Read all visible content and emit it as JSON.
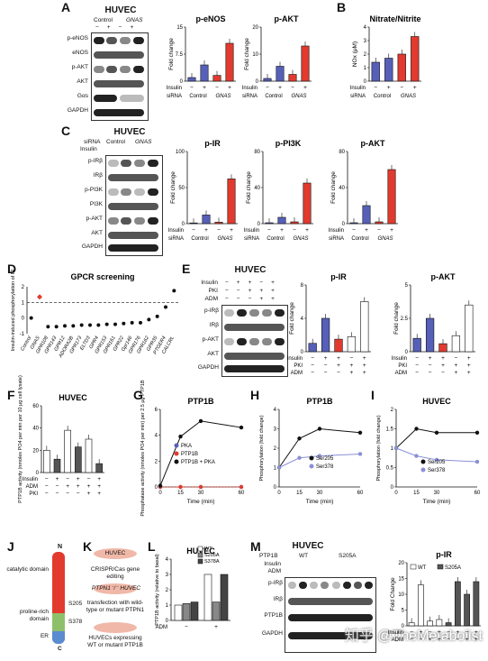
{
  "panels": {
    "A": {
      "letter": "A",
      "cell": "HUVEC",
      "conds": [
        "Control",
        "GNAS"
      ],
      "rows": [
        "p-eNOS",
        "eNOS",
        "p-AKT",
        "AKT",
        "Gαs",
        "GAPDH"
      ],
      "bar1_title": "p-eNOS",
      "bar2_title": "p-AKT",
      "ylabel": "Fold change",
      "insulin": "Insulin",
      "sirna": "siRNA",
      "minus": "−",
      "plus": "+",
      "ctrl": "Control",
      "gnas": "GNAS"
    },
    "B": {
      "letter": "B",
      "title": "Nitrate/Nitrite",
      "ylabel": "NOx (μM)"
    },
    "C": {
      "letter": "C",
      "cell": "HUVEC",
      "rows": [
        "p-IRβ",
        "IRβ",
        "p-PI3K",
        "PI3K",
        "p-AKT",
        "AKT",
        "GAPDH"
      ],
      "t1": "p-IR",
      "t2": "p-PI3K",
      "t3": "p-AKT"
    },
    "D": {
      "letter": "D",
      "title": "GPCR screening",
      "ylabel": "Insulin-induced phosphorylation of IR",
      "genes": [
        "Control",
        "GNAS",
        "GPR108",
        "GPR143",
        "GPR12",
        "ADORA2B",
        "GPR173",
        "ELTD3",
        "GPR4",
        "GPR153",
        "GPR161",
        "GPR22",
        "Gpr146",
        "GPR176",
        "GPR162",
        "GPR35",
        "PTGER4",
        "CALCRL"
      ]
    },
    "E": {
      "letter": "E",
      "cell": "HUVEC",
      "treat": [
        "Insulin",
        "PKI",
        "ADM"
      ],
      "rows": [
        "p-IRβ",
        "IRβ",
        "p-AKT",
        "AKT",
        "GAPDH"
      ],
      "t1": "p-IR",
      "t2": "p-AKT",
      "ns": "n.s."
    },
    "F": {
      "letter": "F",
      "title": "HUVEC",
      "ylabel": "PTP1B activity (nmoles PO4 per min per 10 μg cell lysate)"
    },
    "G": {
      "letter": "G",
      "title": "PTP1B",
      "ylabel": "Phosphatase activity (nmoles PO4 per min) per 2.5 μg PTP1B",
      "xlabel": "Time (min)",
      "legend": [
        "PKA",
        "PTP1B",
        "PTP1B + PKA"
      ]
    },
    "H": {
      "letter": "H",
      "title": "PTP1B",
      "ylabel": "Phosphorylation (fold change)",
      "xlabel": "Time (min)",
      "legend": [
        "Ser205",
        "Ser378"
      ]
    },
    "I": {
      "letter": "I",
      "title": "HUVEC",
      "ylabel": "Phosphorylation (fold change)",
      "xlabel": "Time (min)",
      "legend": [
        "Ser205",
        "Ser378"
      ]
    },
    "J": {
      "letter": "J",
      "domains": [
        "catalytic domain",
        "proline-rich domain",
        "ER"
      ],
      "sites": [
        "S205",
        "S378"
      ],
      "n": "N",
      "c": "C"
    },
    "K": {
      "letter": "K",
      "steps": [
        "HUVEC",
        "CRISPR/Cas gene editing",
        "PTPN1⁻/⁻ HUVEC",
        "transfection with wild-type or mutant PTPN1",
        "HUVECs expressing WT or mutant PTP1B"
      ]
    },
    "L": {
      "letter": "L",
      "title": "HUVEC",
      "ylabel": "PTP1B activity (relative to basal)",
      "legend": [
        "WT",
        "S205A",
        "S378A"
      ],
      "adm": "ADM"
    },
    "M": {
      "letter": "M",
      "title": "HUVEC",
      "ptp": "PTP1B",
      "wt": "WT",
      "mut": "S205A",
      "treat": [
        "Insulin",
        "ADM"
      ],
      "rows": [
        "p-IRβ",
        "IRβ",
        "PTP1B",
        "GAPDH"
      ],
      "bt": "p-IR",
      "ylabel": "Fold Change",
      "legend": [
        "WT",
        "S205A"
      ]
    }
  },
  "watermark": "知乎 @TheMetabolist",
  "colors": {
    "blue": "#5660b8",
    "red": "#e23a2e",
    "lightblue": "#8a8fd6",
    "black": "#111111"
  },
  "chart_data": [
    {
      "panel": "A",
      "type": "bar",
      "title": "p-eNOS",
      "ylabel": "Fold change",
      "ylim": [
        0,
        15
      ],
      "categories": [
        "Control −",
        "Control +",
        "GNAS −",
        "GNAS +"
      ],
      "values": [
        1,
        4.5,
        1.6,
        10.5
      ]
    },
    {
      "panel": "A",
      "type": "bar",
      "title": "p-AKT",
      "ylabel": "Fold change",
      "ylim": [
        0,
        20
      ],
      "categories": [
        "Control −",
        "Control +",
        "GNAS −",
        "GNAS +"
      ],
      "values": [
        1,
        5.5,
        2.5,
        13
      ]
    },
    {
      "panel": "B",
      "type": "bar",
      "title": "Nitrate/Nitrite",
      "ylabel": "NOx (μM)",
      "ylim": [
        0,
        4
      ],
      "categories": [
        "Control −",
        "Control +",
        "GNAS −",
        "GNAS +"
      ],
      "values": [
        1.4,
        1.7,
        2,
        3.3
      ]
    },
    {
      "panel": "C",
      "type": "bar",
      "title": "p-IR",
      "ylabel": "Fold change",
      "ylim": [
        0,
        100
      ],
      "categories": [
        "Control −",
        "Control +",
        "GNAS −",
        "GNAS +"
      ],
      "values": [
        1,
        12,
        2,
        62
      ]
    },
    {
      "panel": "C",
      "type": "bar",
      "title": "p-PI3K",
      "ylabel": "Fold change",
      "ylim": [
        0,
        80
      ],
      "categories": [
        "Control −",
        "Control +",
        "GNAS −",
        "GNAS +"
      ],
      "values": [
        1,
        7,
        2,
        45
      ]
    },
    {
      "panel": "C",
      "type": "bar",
      "title": "p-AKT",
      "ylabel": "Fold change",
      "ylim": [
        0,
        80
      ],
      "categories": [
        "Control −",
        "Control +",
        "GNAS −",
        "GNAS +"
      ],
      "values": [
        1,
        20,
        2,
        60
      ]
    },
    {
      "panel": "D",
      "type": "scatter",
      "title": "GPCR screening",
      "ylim": [
        -1,
        2
      ],
      "categories": [
        "Control",
        "GNAS",
        "GPR108",
        "GPR143",
        "GPR12",
        "ADORA2B",
        "GPR173",
        "ELTD3",
        "GPR4",
        "GPR153",
        "GPR161",
        "GPR22",
        "Gpr146",
        "GPR176",
        "GPR162",
        "GPR35",
        "PTGER4",
        "CALCRL"
      ],
      "values": [
        0,
        1.35,
        -0.55,
        -0.55,
        -0.5,
        -0.5,
        -0.45,
        -0.45,
        -0.45,
        -0.4,
        -0.4,
        -0.35,
        -0.3,
        -0.3,
        -0.1,
        0.1,
        0.7,
        1.75
      ]
    },
    {
      "panel": "E",
      "type": "bar",
      "title": "p-IR",
      "ylabel": "Fold change",
      "ylim": [
        0,
        8
      ],
      "categories": [
        "1",
        "2",
        "3",
        "4",
        "5"
      ],
      "values": [
        1,
        4,
        1.5,
        1.8,
        6
      ]
    },
    {
      "panel": "E",
      "type": "bar",
      "title": "p-AKT",
      "ylabel": "Fold change",
      "ylim": [
        0,
        5
      ],
      "categories": [
        "1",
        "2",
        "3",
        "4",
        "5"
      ],
      "values": [
        1,
        2.5,
        0.6,
        1.2,
        3.5
      ]
    },
    {
      "panel": "F",
      "type": "bar",
      "title": "HUVEC",
      "ylim": [
        0,
        60
      ],
      "categories": [
        "1",
        "2",
        "3",
        "4",
        "5",
        "6"
      ],
      "values": [
        20,
        12,
        38,
        23,
        30,
        8
      ]
    },
    {
      "panel": "G",
      "type": "line",
      "title": "PTP1B",
      "x": [
        0,
        15,
        30,
        60
      ],
      "ylim": [
        0,
        6
      ],
      "series": [
        {
          "name": "PKA",
          "values": [
            0,
            0,
            0,
            0
          ]
        },
        {
          "name": "PTP1B",
          "values": [
            0,
            0,
            0,
            0
          ]
        },
        {
          "name": "PTP1B + PKA",
          "values": [
            0.1,
            3.9,
            5.1,
            4.6
          ]
        }
      ]
    },
    {
      "panel": "H",
      "type": "line",
      "title": "PTP1B",
      "x": [
        0,
        15,
        30,
        60
      ],
      "ylim": [
        0,
        4
      ],
      "series": [
        {
          "name": "Ser205",
          "values": [
            1,
            2.5,
            3,
            2.8
          ]
        },
        {
          "name": "Ser378",
          "values": [
            1,
            1.5,
            1.6,
            1.7
          ]
        }
      ]
    },
    {
      "panel": "I",
      "type": "line",
      "title": "HUVEC",
      "x": [
        0,
        15,
        30,
        60
      ],
      "ylim": [
        0,
        2
      ],
      "series": [
        {
          "name": "Ser205",
          "values": [
            1,
            1.5,
            1.4,
            1.4
          ]
        },
        {
          "name": "Ser378",
          "values": [
            1,
            0.8,
            0.7,
            0.65
          ]
        }
      ]
    },
    {
      "panel": "L",
      "type": "bar",
      "title": "HUVEC",
      "ylim": [
        0,
        4
      ],
      "series": [
        {
          "name": "WT",
          "values": [
            1,
            3
          ]
        },
        {
          "name": "S205A",
          "values": [
            1.1,
            1.2
          ]
        },
        {
          "name": "S378A",
          "values": [
            1.2,
            3
          ]
        }
      ],
      "categories": [
        "−",
        "+"
      ]
    },
    {
      "panel": "M",
      "type": "bar",
      "title": "p-IR",
      "ylim": [
        0,
        20
      ],
      "categories": [
        "1",
        "2",
        "3",
        "4",
        "5",
        "6",
        "7",
        "8"
      ],
      "values": [
        1,
        13,
        1.5,
        2,
        1,
        14,
        10,
        14
      ]
    }
  ]
}
